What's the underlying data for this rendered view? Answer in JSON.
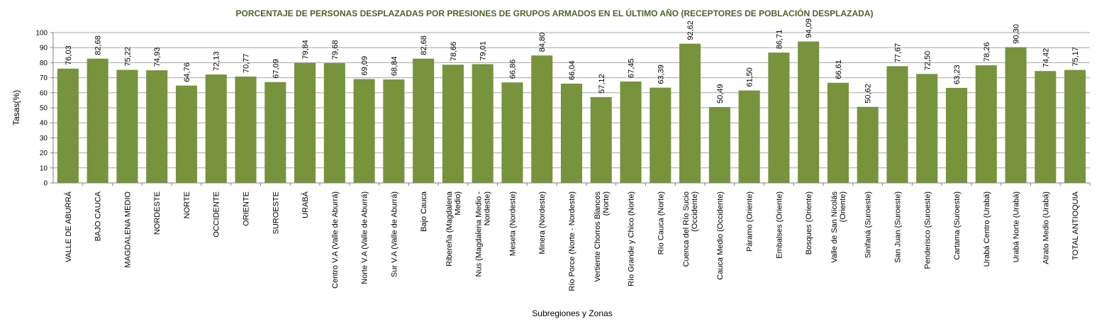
{
  "chart_data": {
    "type": "bar",
    "title": "PORCENTAJE DE PERSONAS DESPLAZADAS POR PRESIONES DE GRUPOS ARMADOS EN EL ÚLTIMO AÑO (RECEPTORES DE POBLACIÓN DESPLAZADA)",
    "xlabel": "Subregiones y Zonas",
    "ylabel": "Tasas(%)",
    "ylim": [
      0,
      100
    ],
    "yticks": [
      "0",
      "10",
      "20",
      "30",
      "40",
      "50",
      "60",
      "70",
      "80",
      "90",
      "100"
    ],
    "grid": true,
    "legend": "none",
    "bar_color": "#77933c",
    "title_color": "#4f6228",
    "categories": [
      "VALLE DE ABURRÁ",
      "BAJO CAUCA",
      "MAGDALENA MEDIO",
      "NORDESTE",
      "NORTE",
      "OCCIDENTE",
      "ORIENTE",
      "SUROESTE",
      "URABÁ",
      "Centro V.A (Valle de Aburrá)",
      "Norte V.A (Valle de Aburrá)",
      "Sur V.A (Valle de Aburrá)",
      "Bajo Cauca",
      "Ribereña (Magdalena Medio)",
      "Nus (Magdalena Medio - Nordeste)",
      "Meseta (Nordeste)",
      "Minera (Nordeste)",
      "Río Porce (Norte - Nordeste)",
      "Vertiente Chorros Blancos (Norte)",
      "Río Grande y Chico (Norte)",
      "Río Cauca (Norte)",
      "Cuenca del Río Sucio (Occidente)",
      "Cauca Medio (Occidente)",
      "Páramo (Oriente)",
      "Embalses (Oriente)",
      "Bosques (Oriente)",
      "Valle de San Nicolás (Oriente)",
      "Sinifaná (Suroeste)",
      "San Juan (Suroeste)",
      "Penderisco (Suroeste)",
      "Cartama (Suroeste)",
      "Urabá Centro (Urabá)",
      "Urabá Norte (Urabá)",
      "Atrato Medio (Urabá)",
      "TOTAL ANTIOQUIA"
    ],
    "category_lines": [
      [
        "VALLE DE ABURRÁ"
      ],
      [
        "BAJO CAUCA"
      ],
      [
        "MAGDALENA MEDIO"
      ],
      [
        "NORDESTE"
      ],
      [
        "NORTE"
      ],
      [
        "OCCIDENTE"
      ],
      [
        "ORIENTE"
      ],
      [
        "SUROESTE"
      ],
      [
        "URABÁ"
      ],
      [
        "Centro V.A (Valle de Aburrá)"
      ],
      [
        "Norte V.A (Valle de Aburrá)"
      ],
      [
        "Sur V.A (Valle de Aburrá)"
      ],
      [
        "Bajo Cauca"
      ],
      [
        "Ribereña (Magdalena",
        "Medio)"
      ],
      [
        "Nus (Magdalena Medio -",
        "Nordeste)"
      ],
      [
        "Meseta (Nordeste)"
      ],
      [
        "Minera (Nordeste)"
      ],
      [
        "Río Porce (Norte - Nordeste)"
      ],
      [
        "Vertiente Chorros Blancos",
        "(Norte)"
      ],
      [
        "Río Grande y Chico (Norte)"
      ],
      [
        "Río Cauca (Norte)"
      ],
      [
        "Cuenca del Río Sucio",
        "(Occidente)"
      ],
      [
        "Cauca Medio (Occidente)"
      ],
      [
        "Páramo (Oriente)"
      ],
      [
        "Embalses (Oriente)"
      ],
      [
        "Bosques (Oriente)"
      ],
      [
        "Valle de San Nicolás",
        "(Oriente)"
      ],
      [
        "Sinifaná (Suroeste)"
      ],
      [
        "San Juan (Suroeste)"
      ],
      [
        "Penderisco (Suroeste)"
      ],
      [
        "Cartama (Suroeste)"
      ],
      [
        "Urabá Centro (Urabá)"
      ],
      [
        "Urabá Norte (Urabá)"
      ],
      [
        "Atrato Medio (Urabá)"
      ],
      [
        "TOTAL ANTIOQUIA"
      ]
    ],
    "values": [
      76.03,
      82.68,
      75.22,
      74.93,
      64.76,
      72.13,
      70.77,
      67.09,
      79.84,
      79.68,
      69.09,
      68.84,
      82.68,
      78.66,
      79.01,
      66.86,
      84.8,
      66.04,
      57.12,
      67.45,
      63.39,
      92.62,
      50.49,
      61.5,
      86.71,
      94.09,
      66.61,
      50.62,
      77.67,
      72.5,
      63.23,
      78.26,
      90.3,
      74.42,
      75.17
    ],
    "data_labels": [
      "76,03",
      "82,68",
      "75,22",
      "74,93",
      "64,76",
      "72,13",
      "70,77",
      "67,09",
      "79,84",
      "79,68",
      "69,09",
      "68,84",
      "82,68",
      "78,66",
      "79,01",
      "66,86",
      "84,80",
      "66,04",
      "57,12",
      "67,45",
      "63,39",
      "92,62",
      "50,49",
      "61,50",
      "86,71",
      "94,09",
      "66,61",
      "50,62",
      "77,67",
      "72,50",
      "63,23",
      "78,26",
      "90,30",
      "74,42",
      "75,17"
    ]
  }
}
